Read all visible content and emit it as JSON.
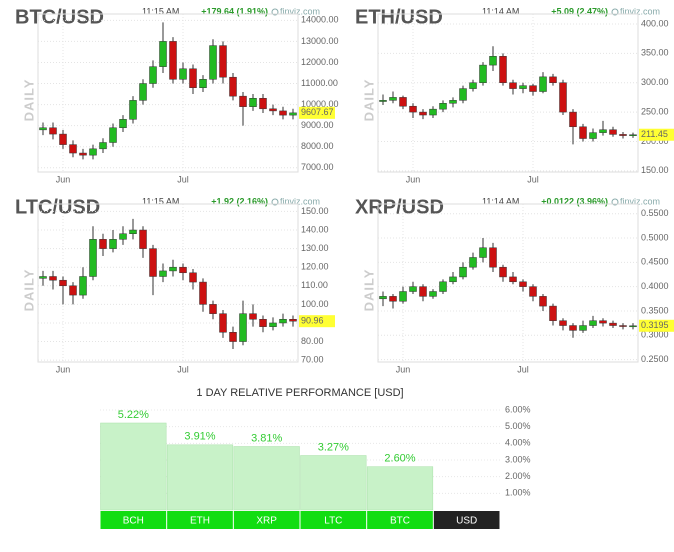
{
  "chart_data": [
    {
      "type": "candlestick",
      "title": "BTC/USD",
      "time": "11:15 AM",
      "change": "+179.64 (1.91%)",
      "source": "finviz.com",
      "ylabel": "DAILY",
      "categories": [
        null,
        null,
        "Jun",
        null,
        null,
        null,
        null,
        null,
        null,
        null,
        null,
        null,
        null,
        null,
        "Jul",
        null,
        null,
        null,
        null,
        null,
        null,
        null,
        null,
        null,
        null,
        null
      ],
      "candles": [
        [
          8800,
          9150,
          8550,
          8900
        ],
        [
          8900,
          9150,
          8350,
          8600
        ],
        [
          8600,
          8800,
          7900,
          8100
        ],
        [
          8100,
          8300,
          7500,
          7700
        ],
        [
          7700,
          7900,
          7400,
          7600
        ],
        [
          7600,
          8100,
          7400,
          7900
        ],
        [
          7900,
          8400,
          7700,
          8200
        ],
        [
          8200,
          9100,
          8000,
          8900
        ],
        [
          8900,
          9500,
          8700,
          9300
        ],
        [
          9300,
          10400,
          9100,
          10200
        ],
        [
          10200,
          11200,
          10000,
          11000
        ],
        [
          11000,
          12100,
          10800,
          11800
        ],
        [
          11800,
          13900,
          11500,
          13000
        ],
        [
          13000,
          13200,
          11000,
          11200
        ],
        [
          11200,
          12000,
          11000,
          11700
        ],
        [
          11700,
          11900,
          10500,
          10800
        ],
        [
          10800,
          11400,
          10600,
          11200
        ],
        [
          11200,
          13100,
          11000,
          12800
        ],
        [
          12800,
          13000,
          11000,
          11300
        ],
        [
          11300,
          11500,
          10200,
          10400
        ],
        [
          10400,
          10600,
          9000,
          9900
        ],
        [
          9900,
          10500,
          9700,
          10300
        ],
        [
          10300,
          10500,
          9600,
          9800
        ],
        [
          9800,
          10000,
          9500,
          9700
        ],
        [
          9700,
          9900,
          9300,
          9500
        ],
        [
          9500,
          9800,
          9300,
          9607.67
        ]
      ],
      "ylim": [
        6800,
        14300
      ],
      "yticks": [
        {
          "value": 7000,
          "label": "7000.00"
        },
        {
          "value": 8000,
          "label": "8000.00"
        },
        {
          "value": 9000,
          "label": "9000.00"
        },
        {
          "value": 10000,
          "label": "10000.00"
        },
        {
          "value": 11000,
          "label": "11000.00"
        },
        {
          "value": 12000,
          "label": "12000.00"
        },
        {
          "value": 13000,
          "label": "13000.00"
        },
        {
          "value": 14000,
          "label": "14000.00"
        }
      ],
      "up_color": "#22bb22",
      "down_color": "#cc1111",
      "grid": true
    },
    {
      "type": "candlestick",
      "title": "ETH/USD",
      "time": "11:14 AM",
      "change": "+5.09 (2.47%)",
      "source": "finviz.com",
      "ylabel": "DAILY",
      "categories": [
        null,
        null,
        null,
        "Jun",
        null,
        null,
        null,
        null,
        null,
        null,
        null,
        null,
        null,
        null,
        null,
        "Jul",
        null,
        null,
        null,
        null,
        null,
        null,
        null,
        null,
        null,
        null
      ],
      "candles": [
        [
          268,
          280,
          262,
          270
        ],
        [
          270,
          285,
          265,
          275
        ],
        [
          275,
          278,
          255,
          260
        ],
        [
          260,
          265,
          240,
          250
        ],
        [
          250,
          255,
          238,
          245
        ],
        [
          245,
          260,
          240,
          255
        ],
        [
          255,
          270,
          250,
          265
        ],
        [
          265,
          275,
          258,
          270
        ],
        [
          270,
          295,
          265,
          290
        ],
        [
          290,
          305,
          285,
          300
        ],
        [
          300,
          335,
          295,
          330
        ],
        [
          330,
          362,
          320,
          345
        ],
        [
          345,
          350,
          295,
          300
        ],
        [
          300,
          305,
          280,
          290
        ],
        [
          290,
          300,
          282,
          295
        ],
        [
          295,
          298,
          278,
          285
        ],
        [
          285,
          318,
          282,
          310
        ],
        [
          310,
          315,
          295,
          300
        ],
        [
          300,
          305,
          245,
          250
        ],
        [
          250,
          255,
          195,
          225
        ],
        [
          225,
          230,
          200,
          205
        ],
        [
          205,
          222,
          200,
          215
        ],
        [
          215,
          235,
          210,
          220
        ],
        [
          220,
          225,
          208,
          212
        ],
        [
          212,
          216,
          205,
          210
        ],
        [
          210,
          215,
          206,
          211.45
        ]
      ],
      "ylim": [
        148,
        417
      ],
      "yticks": [
        {
          "value": 150,
          "label": "150.00"
        },
        {
          "value": 200,
          "label": "200.00"
        },
        {
          "value": 250,
          "label": "250.00"
        },
        {
          "value": 300,
          "label": "300.00"
        },
        {
          "value": 350,
          "label": "350.00"
        },
        {
          "value": 400,
          "label": "400.00"
        }
      ],
      "up_color": "#22bb22",
      "down_color": "#cc1111",
      "grid": true
    },
    {
      "type": "candlestick",
      "title": "LTC/USD",
      "time": "11:15 AM",
      "change": "+1.92 (2.16%)",
      "source": "finviz.com",
      "ylabel": "DAILY",
      "categories": [
        null,
        null,
        "Jun",
        null,
        null,
        null,
        null,
        null,
        null,
        null,
        null,
        null,
        null,
        null,
        "Jul",
        null,
        null,
        null,
        null,
        null,
        null,
        null,
        null,
        null,
        null,
        null
      ],
      "candles": [
        [
          114,
          118,
          110,
          115
        ],
        [
          115,
          118,
          108,
          113
        ],
        [
          113,
          115,
          100,
          110
        ],
        [
          110,
          112,
          100,
          105
        ],
        [
          105,
          120,
          103,
          115
        ],
        [
          115,
          142,
          113,
          135
        ],
        [
          135,
          138,
          126,
          130
        ],
        [
          130,
          140,
          128,
          135
        ],
        [
          135,
          142,
          132,
          138
        ],
        [
          138,
          146,
          135,
          140
        ],
        [
          140,
          142,
          125,
          130
        ],
        [
          130,
          132,
          105,
          115
        ],
        [
          115,
          122,
          112,
          118
        ],
        [
          118,
          124,
          115,
          120
        ],
        [
          120,
          122,
          113,
          117
        ],
        [
          117,
          119,
          108,
          112
        ],
        [
          112,
          114,
          96,
          100
        ],
        [
          100,
          102,
          92,
          95
        ],
        [
          95,
          97,
          82,
          85
        ],
        [
          85,
          88,
          76,
          80
        ],
        [
          80,
          102,
          78,
          95
        ],
        [
          95,
          100,
          88,
          92
        ],
        [
          92,
          94,
          85,
          88
        ],
        [
          88,
          93,
          86,
          90
        ],
        [
          90,
          95,
          88,
          92
        ],
        [
          92,
          94,
          88,
          90.96
        ]
      ],
      "ylim": [
        69,
        154
      ],
      "yticks": [
        {
          "value": 70,
          "label": "70.00"
        },
        {
          "value": 80,
          "label": "80.00"
        },
        {
          "value": 90,
          "label": "90.00"
        },
        {
          "value": 100,
          "label": "100.00"
        },
        {
          "value": 110,
          "label": "110.00"
        },
        {
          "value": 120,
          "label": "120.00"
        },
        {
          "value": 130,
          "label": "130.00"
        },
        {
          "value": 140,
          "label": "140.00"
        },
        {
          "value": 150,
          "label": "150.00"
        }
      ],
      "up_color": "#22bb22",
      "down_color": "#cc1111",
      "grid": true
    },
    {
      "type": "candlestick",
      "title": "XRP/USD",
      "time": "11:14 AM",
      "change": "+0.0122 (3.96%)",
      "source": "finviz.com",
      "ylabel": "DAILY",
      "categories": [
        null,
        null,
        "Jun",
        null,
        null,
        null,
        null,
        null,
        null,
        null,
        null,
        null,
        null,
        null,
        "Jul",
        null,
        null,
        null,
        null,
        null,
        null,
        null,
        null,
        null,
        null,
        null
      ],
      "candles": [
        [
          0.375,
          0.39,
          0.36,
          0.38
        ],
        [
          0.38,
          0.385,
          0.355,
          0.37
        ],
        [
          0.37,
          0.4,
          0.365,
          0.39
        ],
        [
          0.39,
          0.41,
          0.385,
          0.4
        ],
        [
          0.4,
          0.405,
          0.37,
          0.38
        ],
        [
          0.38,
          0.395,
          0.375,
          0.39
        ],
        [
          0.39,
          0.415,
          0.385,
          0.41
        ],
        [
          0.41,
          0.43,
          0.405,
          0.42
        ],
        [
          0.42,
          0.45,
          0.415,
          0.44
        ],
        [
          0.44,
          0.47,
          0.435,
          0.46
        ],
        [
          0.46,
          0.5,
          0.45,
          0.48
        ],
        [
          0.48,
          0.49,
          0.43,
          0.44
        ],
        [
          0.44,
          0.445,
          0.41,
          0.42
        ],
        [
          0.42,
          0.43,
          0.405,
          0.41
        ],
        [
          0.41,
          0.415,
          0.39,
          0.4
        ],
        [
          0.4,
          0.405,
          0.37,
          0.38
        ],
        [
          0.38,
          0.385,
          0.35,
          0.36
        ],
        [
          0.36,
          0.365,
          0.32,
          0.33
        ],
        [
          0.33,
          0.335,
          0.31,
          0.32
        ],
        [
          0.32,
          0.325,
          0.295,
          0.31
        ],
        [
          0.31,
          0.33,
          0.305,
          0.32
        ],
        [
          0.32,
          0.34,
          0.315,
          0.33
        ],
        [
          0.33,
          0.335,
          0.318,
          0.325
        ],
        [
          0.325,
          0.33,
          0.315,
          0.32
        ],
        [
          0.32,
          0.325,
          0.312,
          0.318
        ],
        [
          0.318,
          0.325,
          0.312,
          0.3195
        ]
      ],
      "ylim": [
        0.245,
        0.57
      ],
      "yticks": [
        {
          "value": 0.25,
          "label": "0.2500"
        },
        {
          "value": 0.3,
          "label": "0.3000"
        },
        {
          "value": 0.35,
          "label": "0.3500"
        },
        {
          "value": 0.4,
          "label": "0.4000"
        },
        {
          "value": 0.45,
          "label": "0.4500"
        },
        {
          "value": 0.5,
          "label": "0.5000"
        },
        {
          "value": 0.55,
          "label": "0.5500"
        }
      ],
      "up_color": "#22bb22",
      "down_color": "#cc1111",
      "grid": true
    },
    {
      "type": "bar",
      "title": "1 DAY RELATIVE PERFORMANCE  [USD]",
      "categories": [
        "BCH",
        "ETH",
        "XRP",
        "LTC",
        "BTC",
        "USD"
      ],
      "values": [
        5.22,
        3.91,
        3.81,
        3.27,
        2.6,
        null
      ],
      "value_labels": [
        "5.22%",
        "3.91%",
        "3.81%",
        "3.27%",
        "2.60%",
        null
      ],
      "ylim": [
        0,
        6.6
      ],
      "yticks": [
        {
          "value": 1,
          "label": "1.00%"
        },
        {
          "value": 2,
          "label": "2.00%"
        },
        {
          "value": 3,
          "label": "3.00%"
        },
        {
          "value": 4,
          "label": "4.00%"
        },
        {
          "value": 5,
          "label": "5.00%"
        },
        {
          "value": 6,
          "label": "6.00%"
        }
      ],
      "color": "#c8f2c8",
      "label_color": "#33cc33",
      "category_colors": [
        "#11dd11",
        "#11dd11",
        "#11dd11",
        "#11dd11",
        "#11dd11",
        "#222222"
      ],
      "grid": true
    }
  ]
}
